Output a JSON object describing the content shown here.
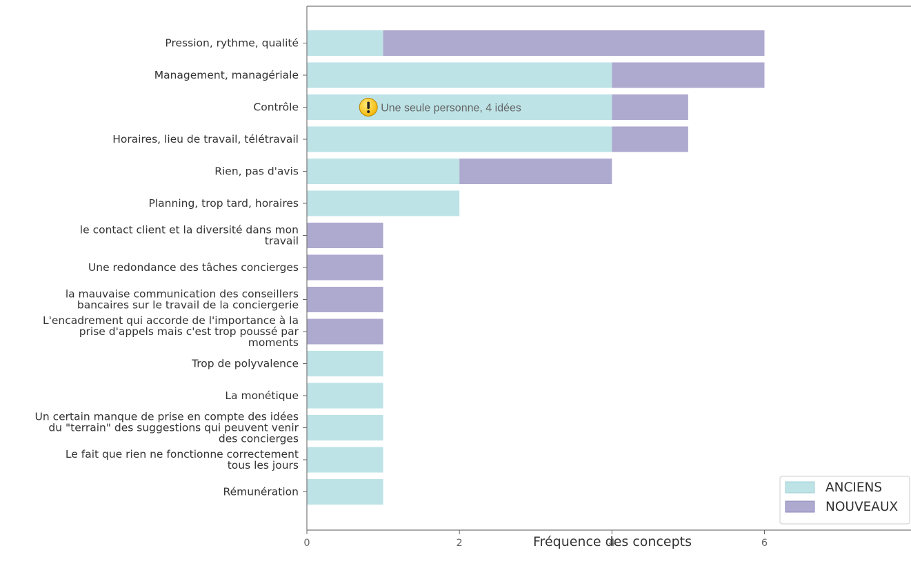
{
  "chart_data": {
    "type": "bar",
    "orientation": "horizontal",
    "stacked": true,
    "xlabel": "Fréquence des concepts",
    "xlim": [
      0,
      7.8
    ],
    "xticks": [
      0,
      2,
      4,
      6
    ],
    "grid": false,
    "legend_position": "bottom-right",
    "categories": [
      [
        "Pression, rythme, qualité"
      ],
      [
        "Management, managériale"
      ],
      [
        "Contrôle"
      ],
      [
        "Horaires, lieu de travail, télétravail"
      ],
      [
        "Rien, pas d'avis"
      ],
      [
        "Planning, trop tard, horaires"
      ],
      [
        "le contact client et la diversité dans mon",
        "travail"
      ],
      [
        "Une redondance des tâches concierges"
      ],
      [
        "la mauvaise communication des conseillers",
        "bancaires sur le travail de la conciergerie"
      ],
      [
        "L'encadrement qui accorde de l'importance à la",
        "prise d'appels mais c'est trop poussé par",
        "moments"
      ],
      [
        "Trop de polyvalence"
      ],
      [
        "La monétique"
      ],
      [
        "Un certain manque de prise en compte des idées",
        "du \"terrain\" des suggestions qui peuvent venir",
        "des concierges"
      ],
      [
        "Le fait que rien ne fonctionne correctement",
        "tous les jours"
      ],
      [
        "Rémunération"
      ]
    ],
    "series": [
      {
        "name": "ANCIENS",
        "color": "#bde3e6",
        "values": [
          1,
          4,
          4,
          4,
          2,
          2,
          0,
          0,
          0,
          0,
          1,
          1,
          1,
          1,
          1
        ]
      },
      {
        "name": "NOUVEAUX",
        "color": "#ada9cf",
        "values": [
          5,
          2,
          1,
          1,
          2,
          0,
          1,
          1,
          1,
          1,
          0,
          0,
          0,
          0,
          0
        ]
      }
    ],
    "annotations": [
      {
        "category_index": 2,
        "x": 0.68,
        "text": "Une seule personne, 4 idées",
        "icon": "warning-icon"
      }
    ]
  }
}
